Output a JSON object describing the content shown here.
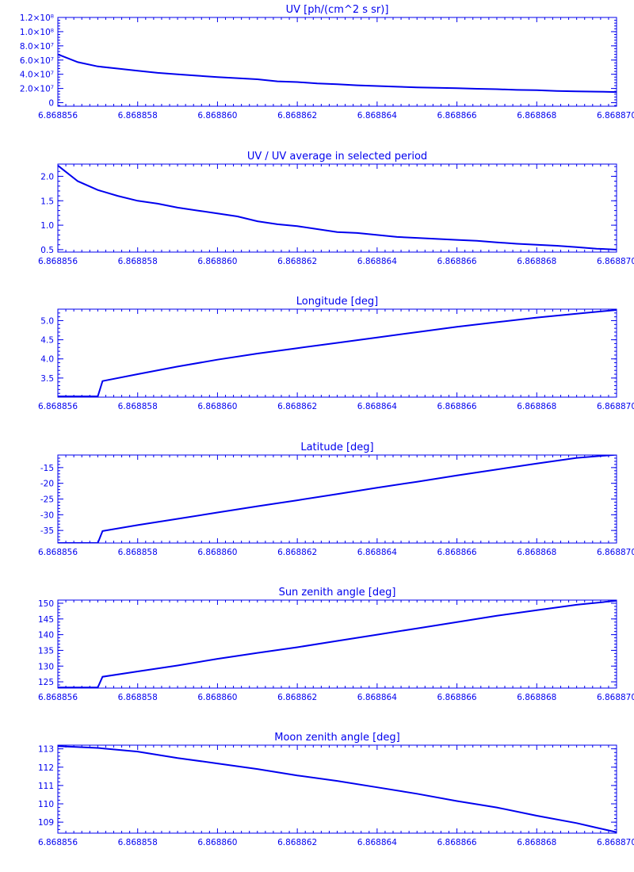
{
  "chart_data": [
    {
      "type": "line",
      "title": "UV [ph/(cm^2 s sr)]",
      "xlabel": "",
      "ylabel": "",
      "xlim": [
        6.868856,
        6.86887
      ],
      "ylim": [
        -5000000,
        120000000
      ],
      "x_ticks": [
        "6.868856",
        "6.868858",
        "6.868860",
        "6.868862",
        "6.868864",
        "6.868866",
        "6.868868",
        "6.868870"
      ],
      "y_ticks": [
        {
          "value": 0,
          "label": "0"
        },
        {
          "value": 20000000,
          "label": "2.0×10⁷"
        },
        {
          "value": 40000000,
          "label": "4.0×10⁷"
        },
        {
          "value": 60000000,
          "label": "6.0×10⁷"
        },
        {
          "value": 80000000,
          "label": "8.0×10⁷"
        },
        {
          "value": 100000000,
          "label": "1.0×10⁸"
        },
        {
          "value": 120000000,
          "label": "1.2×10⁸"
        }
      ],
      "series": [
        {
          "x": [
            6.868856,
            6.8688565,
            6.868857,
            6.8688575,
            6.868858,
            6.8688585,
            6.868859,
            6.8688595,
            6.86886,
            6.8688605,
            6.868861,
            6.8688615,
            6.868862,
            6.8688625,
            6.868863,
            6.8688635,
            6.868864,
            6.8688645,
            6.868865,
            6.8688655,
            6.868866,
            6.8688665,
            6.868867,
            6.8688675,
            6.868868,
            6.8688685,
            6.868869,
            6.8688695,
            6.86887
          ],
          "y": [
            68000000,
            57000000,
            51000000,
            48000000,
            45000000,
            42000000,
            40000000,
            38000000,
            36000000,
            34500000,
            33000000,
            30000000,
            29000000,
            27000000,
            26000000,
            24500000,
            23500000,
            22500000,
            21500000,
            21000000,
            20500000,
            19500000,
            19000000,
            18000000,
            17500000,
            16500000,
            16000000,
            15500000,
            15000000
          ]
        }
      ]
    },
    {
      "type": "line",
      "title": "UV / UV average in selected period",
      "xlabel": "",
      "ylabel": "",
      "xlim": [
        6.868856,
        6.86887
      ],
      "ylim": [
        0.45,
        2.25
      ],
      "x_ticks": [
        "6.868856",
        "6.868858",
        "6.868860",
        "6.868862",
        "6.868864",
        "6.868866",
        "6.868868",
        "6.868870"
      ],
      "y_ticks": [
        {
          "value": 0.5,
          "label": "0.5"
        },
        {
          "value": 1.0,
          "label": "1.0"
        },
        {
          "value": 1.5,
          "label": "1.5"
        },
        {
          "value": 2.0,
          "label": "2.0"
        }
      ],
      "series": [
        {
          "x": [
            6.868856,
            6.8688565,
            6.868857,
            6.8688575,
            6.868858,
            6.8688585,
            6.868859,
            6.8688595,
            6.86886,
            6.8688605,
            6.868861,
            6.8688615,
            6.868862,
            6.8688625,
            6.868863,
            6.8688635,
            6.868864,
            6.8688645,
            6.868865,
            6.8688655,
            6.868866,
            6.8688665,
            6.868867,
            6.8688675,
            6.868868,
            6.8688685,
            6.868869,
            6.8688695,
            6.86887
          ],
          "y": [
            2.22,
            1.9,
            1.72,
            1.6,
            1.5,
            1.44,
            1.36,
            1.3,
            1.24,
            1.18,
            1.08,
            1.02,
            0.98,
            0.92,
            0.86,
            0.84,
            0.8,
            0.76,
            0.74,
            0.72,
            0.7,
            0.68,
            0.65,
            0.62,
            0.6,
            0.58,
            0.55,
            0.52,
            0.5
          ]
        }
      ]
    },
    {
      "type": "line",
      "title": "Longitude [deg]",
      "xlabel": "",
      "ylabel": "",
      "xlim": [
        6.868856,
        6.86887
      ],
      "ylim": [
        3.0,
        5.3
      ],
      "x_ticks": [
        "6.868856",
        "6.868858",
        "6.868860",
        "6.868862",
        "6.868864",
        "6.868866",
        "6.868868",
        "6.868870"
      ],
      "y_ticks": [
        {
          "value": 3.5,
          "label": "3.5"
        },
        {
          "value": 4.0,
          "label": "4.0"
        },
        {
          "value": 4.5,
          "label": "4.5"
        },
        {
          "value": 5.0,
          "label": "5.0"
        }
      ],
      "series": [
        {
          "x": [
            6.868856,
            6.868857,
            6.86885712,
            6.868858,
            6.868859,
            6.86886,
            6.868861,
            6.868862,
            6.868863,
            6.868864,
            6.868865,
            6.868866,
            6.868867,
            6.868868,
            6.868869,
            6.86887
          ],
          "y": [
            3.02,
            3.02,
            3.42,
            3.6,
            3.8,
            3.98,
            4.14,
            4.28,
            4.42,
            4.56,
            4.7,
            4.84,
            4.96,
            5.08,
            5.18,
            5.28
          ]
        }
      ]
    },
    {
      "type": "line",
      "title": "Latitude [deg]",
      "xlabel": "",
      "ylabel": "",
      "xlim": [
        6.868856,
        6.86887
      ],
      "ylim": [
        -39.0,
        -11.0
      ],
      "x_ticks": [
        "6.868856",
        "6.868858",
        "6.868860",
        "6.868862",
        "6.868864",
        "6.868866",
        "6.868868",
        "6.868870"
      ],
      "y_ticks": [
        {
          "value": -35,
          "label": "-35"
        },
        {
          "value": -30,
          "label": "-30"
        },
        {
          "value": -25,
          "label": "-25"
        },
        {
          "value": -20,
          "label": "-20"
        },
        {
          "value": -15,
          "label": "-15"
        }
      ],
      "series": [
        {
          "x": [
            6.868856,
            6.868857,
            6.86885712,
            6.868858,
            6.868859,
            6.86886,
            6.868861,
            6.868862,
            6.868863,
            6.868864,
            6.868865,
            6.868866,
            6.868867,
            6.868868,
            6.868869,
            6.86887
          ],
          "y": [
            -39.0,
            -39.0,
            -35.2,
            -33.3,
            -31.3,
            -29.3,
            -27.3,
            -25.4,
            -23.4,
            -21.4,
            -19.5,
            -17.5,
            -15.6,
            -13.7,
            -11.9,
            -10.9
          ]
        }
      ]
    },
    {
      "type": "line",
      "title": "Sun zenith angle [deg]",
      "xlabel": "",
      "ylabel": "",
      "xlim": [
        6.868856,
        6.86887
      ],
      "ylim": [
        123.0,
        151.0
      ],
      "x_ticks": [
        "6.868856",
        "6.868858",
        "6.868860",
        "6.868862",
        "6.868864",
        "6.868866",
        "6.868868",
        "6.868870"
      ],
      "y_ticks": [
        {
          "value": 125,
          "label": "125"
        },
        {
          "value": 130,
          "label": "130"
        },
        {
          "value": 135,
          "label": "135"
        },
        {
          "value": 140,
          "label": "140"
        },
        {
          "value": 145,
          "label": "145"
        },
        {
          "value": 150,
          "label": "150"
        }
      ],
      "series": [
        {
          "x": [
            6.868856,
            6.868857,
            6.86885712,
            6.868858,
            6.868859,
            6.86886,
            6.868861,
            6.868862,
            6.868863,
            6.868864,
            6.868865,
            6.868866,
            6.868867,
            6.868868,
            6.868869,
            6.86887
          ],
          "y": [
            123.2,
            123.2,
            126.6,
            128.3,
            130.2,
            132.3,
            134.2,
            136.0,
            138.0,
            140.0,
            142.0,
            144.0,
            146.0,
            147.8,
            149.5,
            150.8
          ]
        }
      ]
    },
    {
      "type": "line",
      "title": "Moon zenith angle [deg]",
      "xlabel": "",
      "ylabel": "",
      "xlim": [
        6.868856,
        6.86887
      ],
      "ylim": [
        108.4,
        113.2
      ],
      "x_ticks": [
        "6.868856",
        "6.868858",
        "6.868860",
        "6.868862",
        "6.868864",
        "6.868866",
        "6.868868",
        "6.868870"
      ],
      "y_ticks": [
        {
          "value": 109,
          "label": "109"
        },
        {
          "value": 110,
          "label": "110"
        },
        {
          "value": 111,
          "label": "111"
        },
        {
          "value": 112,
          "label": "112"
        },
        {
          "value": 113,
          "label": "113"
        }
      ],
      "series": [
        {
          "x": [
            6.868856,
            6.868857,
            6.868858,
            6.868859,
            6.86886,
            6.868861,
            6.868862,
            6.868863,
            6.868864,
            6.868865,
            6.868866,
            6.868867,
            6.868868,
            6.868869,
            6.8688695,
            6.86887
          ],
          "y": [
            113.15,
            113.05,
            112.85,
            112.5,
            112.2,
            111.9,
            111.55,
            111.25,
            110.9,
            110.55,
            110.15,
            109.8,
            109.35,
            108.95,
            108.7,
            108.45
          ]
        }
      ]
    }
  ],
  "colors": {
    "axis": "#0000ee",
    "line": "#0000ee",
    "background": "#ffffff"
  }
}
